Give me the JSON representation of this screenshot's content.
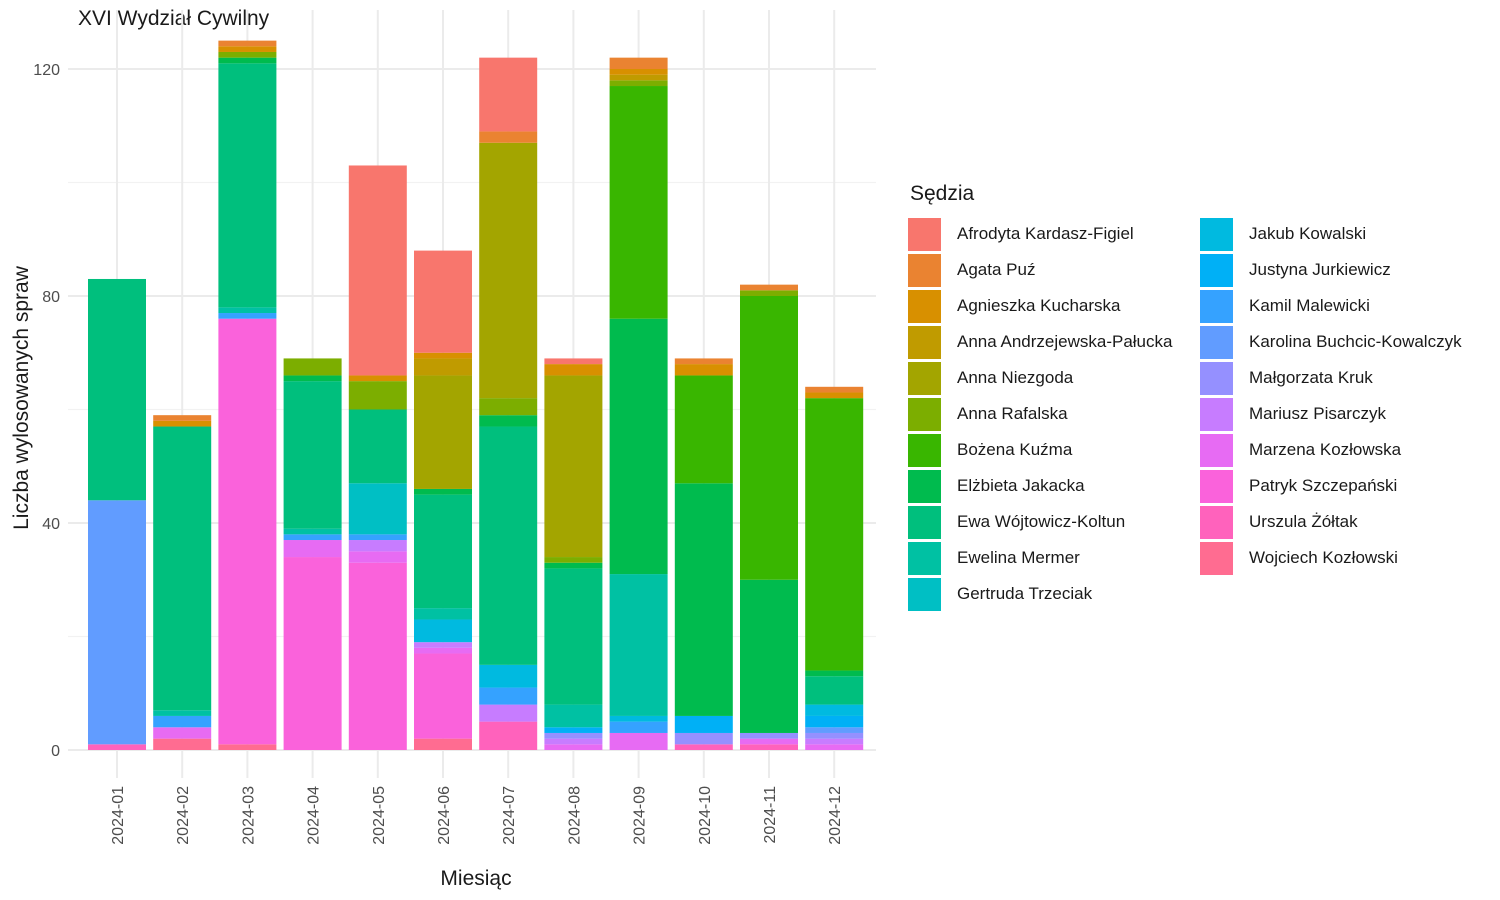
{
  "chart_data": {
    "type": "bar",
    "stacked": true,
    "title": "XVI Wydział Cywilny",
    "xlabel": "Miesiąc",
    "ylabel": "Liczba wylosowanych spraw",
    "ylim": [
      0,
      125
    ],
    "yticks": [
      0,
      40,
      80,
      120
    ],
    "grid": true,
    "legend_title": "Sędzia",
    "legend_position": "right",
    "categories": [
      "2024-01",
      "2024-02",
      "2024-03",
      "2024-04",
      "2024-05",
      "2024-06",
      "2024-07",
      "2024-08",
      "2024-09",
      "2024-10",
      "2024-11",
      "2024-12"
    ],
    "series": [
      {
        "name": "Afrodyta Kardasz-Figiel",
        "color": "#F8766D",
        "values": [
          0,
          0,
          0,
          0,
          37,
          18,
          13,
          1,
          0,
          0,
          0,
          0
        ]
      },
      {
        "name": "Agata Puź",
        "color": "#EA8331",
        "values": [
          0,
          1,
          1,
          0,
          0,
          0,
          2,
          0,
          2,
          1,
          1,
          1
        ]
      },
      {
        "name": "Agnieszka Kucharska",
        "color": "#D89000",
        "values": [
          0,
          1,
          1,
          0,
          1,
          1,
          0,
          2,
          1,
          2,
          0,
          1
        ]
      },
      {
        "name": "Anna Andrzejewska-Pałucka",
        "color": "#C09B00",
        "values": [
          0,
          0,
          0,
          0,
          0,
          3,
          0,
          0,
          1,
          0,
          0,
          0
        ]
      },
      {
        "name": "Anna Niezgoda",
        "color": "#A3A500",
        "values": [
          0,
          0,
          0,
          0,
          0,
          20,
          45,
          32,
          0,
          0,
          0,
          0
        ]
      },
      {
        "name": "Anna Rafalska",
        "color": "#7CAE00",
        "values": [
          0,
          0,
          1,
          3,
          5,
          0,
          3,
          1,
          1,
          0,
          1,
          0
        ]
      },
      {
        "name": "Bożena Kuźma",
        "color": "#39B600",
        "values": [
          0,
          0,
          0,
          0,
          0,
          0,
          0,
          0,
          41,
          19,
          50,
          48
        ]
      },
      {
        "name": "Elżbieta Jakacka",
        "color": "#00BB4E",
        "values": [
          0,
          0,
          1,
          1,
          0,
          1,
          2,
          1,
          45,
          41,
          27,
          1
        ]
      },
      {
        "name": "Ewa Wójtowicz-Koltun",
        "color": "#00BF7D",
        "values": [
          39,
          50,
          43,
          26,
          13,
          20,
          42,
          24,
          0,
          0,
          0,
          5
        ]
      },
      {
        "name": "Ewelina Mermer",
        "color": "#00C1A3",
        "values": [
          0,
          1,
          1,
          1,
          0,
          2,
          0,
          4,
          25,
          0,
          0,
          0
        ]
      },
      {
        "name": "Gertruda Trzeciak",
        "color": "#00BFC4",
        "values": [
          0,
          0,
          0,
          0,
          9,
          0,
          0,
          0,
          0,
          0,
          0,
          0
        ]
      },
      {
        "name": "Jakub Kowalski",
        "color": "#00BAE0",
        "values": [
          0,
          0,
          0,
          0,
          0,
          4,
          4,
          0,
          1,
          0,
          0,
          2
        ]
      },
      {
        "name": "Justyna Jurkiewicz",
        "color": "#00B0F6",
        "values": [
          0,
          0,
          0,
          0,
          0,
          0,
          0,
          1,
          0,
          3,
          0,
          2
        ]
      },
      {
        "name": "Kamil Malewicki",
        "color": "#35A2FF",
        "values": [
          0,
          2,
          1,
          1,
          1,
          0,
          3,
          0,
          2,
          0,
          0,
          0
        ]
      },
      {
        "name": "Karolina Buchcic-Kowalczyk",
        "color": "#619CFF",
        "values": [
          43,
          0,
          0,
          0,
          0,
          0,
          0,
          0,
          0,
          0,
          0,
          1
        ]
      },
      {
        "name": "Małgorzata Kruk",
        "color": "#9590FF",
        "values": [
          0,
          0,
          0,
          0,
          0,
          0,
          0,
          1,
          0,
          2,
          1,
          1
        ]
      },
      {
        "name": "Mariusz Pisarczyk",
        "color": "#C77CFF",
        "values": [
          0,
          0,
          0,
          0,
          2,
          1,
          3,
          1,
          0,
          0,
          0,
          1
        ]
      },
      {
        "name": "Marzena Kozłowska",
        "color": "#E76BF3",
        "values": [
          0,
          2,
          0,
          3,
          2,
          1,
          0,
          1,
          3,
          0,
          1,
          1
        ]
      },
      {
        "name": "Patryk Szczepański",
        "color": "#FA62DB",
        "values": [
          0,
          0,
          75,
          34,
          33,
          15,
          0,
          0,
          0,
          0,
          0,
          0
        ]
      },
      {
        "name": "Urszula Żółtak",
        "color": "#FF62BC",
        "values": [
          1,
          0,
          0,
          0,
          0,
          0,
          5,
          0,
          0,
          1,
          1,
          0
        ]
      },
      {
        "name": "Wojciech Kozłowski",
        "color": "#FF6C91",
        "values": [
          0,
          2,
          1,
          0,
          0,
          2,
          0,
          0,
          0,
          0,
          0,
          0
        ]
      }
    ]
  }
}
